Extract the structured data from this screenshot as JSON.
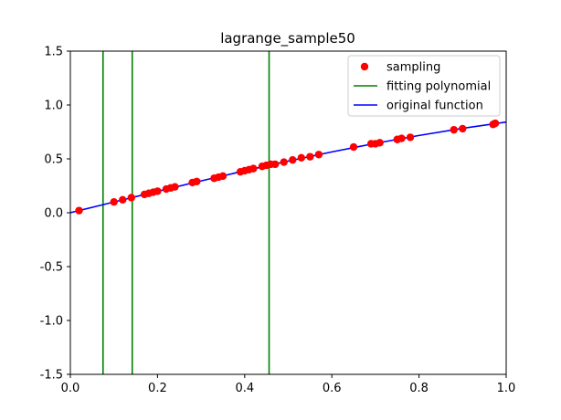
{
  "chart_data": {
    "type": "line",
    "title": "lagrange_sample50",
    "xlabel": "",
    "ylabel": "",
    "xlim": [
      0.0,
      1.0
    ],
    "ylim": [
      -1.5,
      1.5
    ],
    "x_ticks": [
      "0.0",
      "0.2",
      "0.4",
      "0.6",
      "0.8",
      "1.0"
    ],
    "x_tick_values": [
      0.0,
      0.2,
      0.4,
      0.6,
      0.8,
      1.0
    ],
    "y_ticks": [
      "-1.5",
      "-1.0",
      "-0.5",
      "0.0",
      "0.5",
      "1.0",
      "1.5"
    ],
    "y_tick_values": [
      -1.5,
      -1.0,
      -0.5,
      0.0,
      0.5,
      1.0,
      1.5
    ],
    "grid": false,
    "legend_position": "top-right",
    "series": [
      {
        "name": "sampling",
        "kind": "scatter",
        "color": "#ff0000",
        "x": [
          0.02,
          0.1,
          0.12,
          0.14,
          0.17,
          0.18,
          0.19,
          0.2,
          0.22,
          0.23,
          0.24,
          0.28,
          0.29,
          0.33,
          0.34,
          0.35,
          0.39,
          0.4,
          0.41,
          0.42,
          0.44,
          0.45,
          0.46,
          0.47,
          0.49,
          0.51,
          0.53,
          0.55,
          0.57,
          0.65,
          0.69,
          0.7,
          0.71,
          0.75,
          0.76,
          0.78,
          0.88,
          0.9,
          0.97,
          0.975
        ],
        "y": [
          0.02,
          0.1,
          0.12,
          0.14,
          0.17,
          0.18,
          0.19,
          0.2,
          0.22,
          0.23,
          0.24,
          0.28,
          0.29,
          0.32,
          0.33,
          0.34,
          0.38,
          0.39,
          0.4,
          0.41,
          0.43,
          0.44,
          0.45,
          0.45,
          0.47,
          0.49,
          0.51,
          0.52,
          0.54,
          0.61,
          0.64,
          0.64,
          0.65,
          0.68,
          0.69,
          0.7,
          0.77,
          0.78,
          0.82,
          0.83
        ]
      },
      {
        "name": "fitting polynomial",
        "kind": "vlines",
        "color": "#008000",
        "x": [
          0.075,
          0.142,
          0.456
        ]
      },
      {
        "name": "original function",
        "kind": "line",
        "color": "#0000ff",
        "x": [
          0.0,
          0.1,
          0.2,
          0.3,
          0.4,
          0.5,
          0.6,
          0.7,
          0.8,
          0.9,
          1.0
        ],
        "y": [
          0.0,
          0.0998,
          0.1987,
          0.2955,
          0.3894,
          0.4794,
          0.5646,
          0.6442,
          0.7174,
          0.7833,
          0.8415
        ]
      }
    ]
  }
}
